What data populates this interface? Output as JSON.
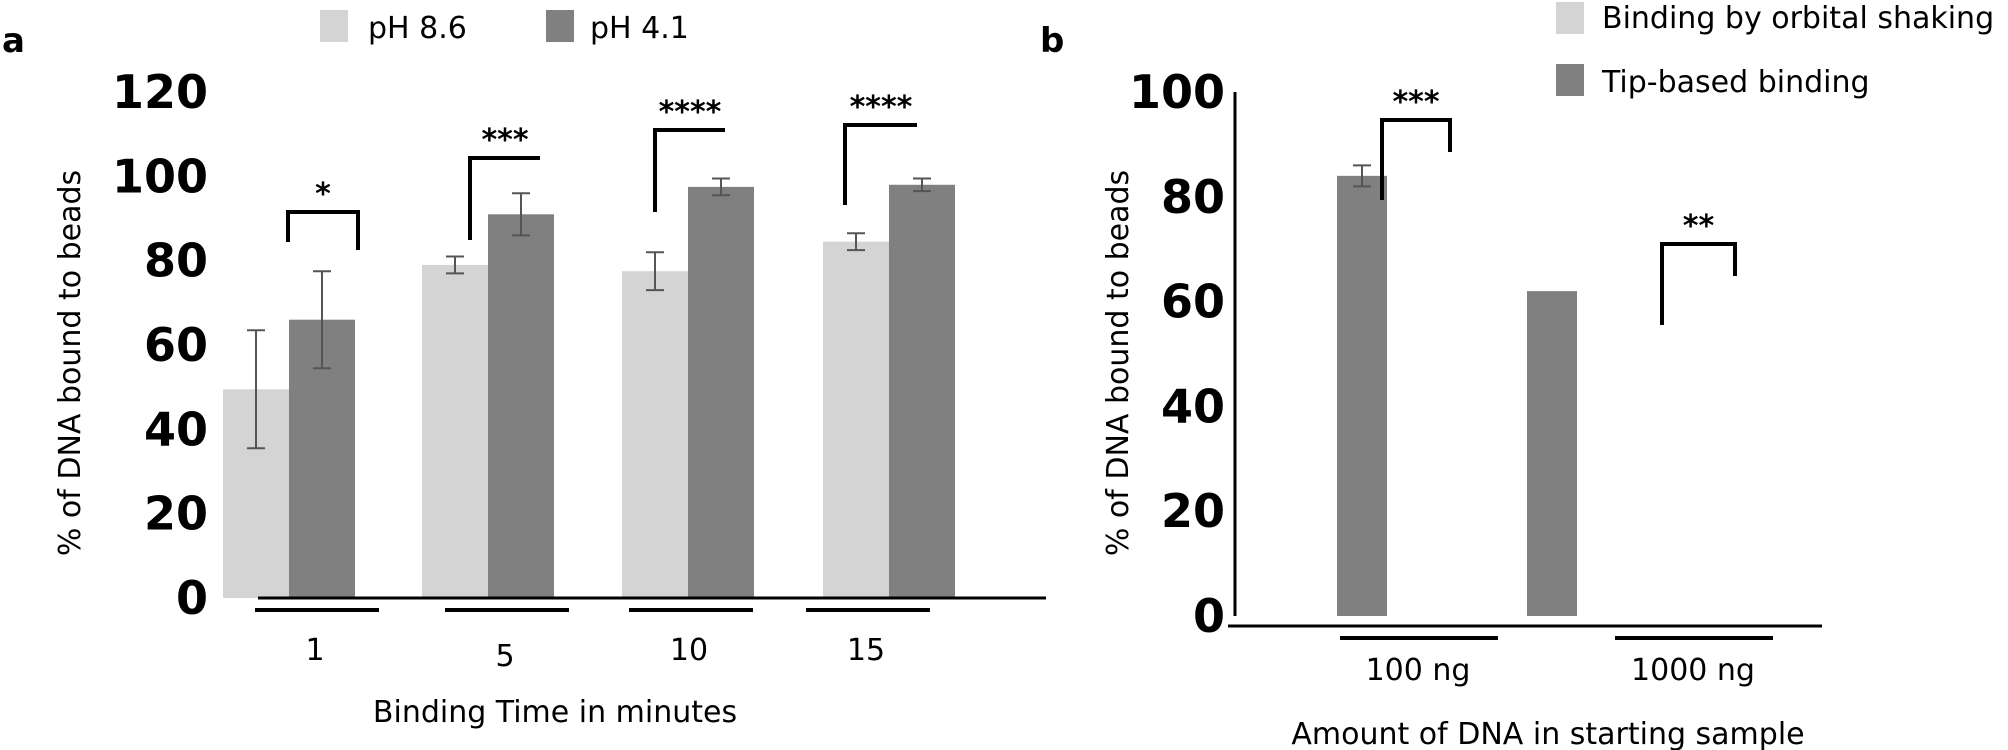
{
  "chart_data": [
    {
      "panel": "a",
      "type": "bar",
      "title": "",
      "xlabel": "Binding Time in minutes",
      "ylabel": "% of DNA bound to beads",
      "ylim": [
        0,
        120
      ],
      "yticks": [
        0,
        20,
        40,
        60,
        80,
        100,
        120
      ],
      "categories": [
        "1",
        "5",
        "10",
        "15"
      ],
      "legend_position": "top",
      "grid": false,
      "series": [
        {
          "name": "pH 8.6",
          "color": "#d4d4d4",
          "values": [
            49.5,
            79,
            77.5,
            84.5
          ],
          "errors": [
            14,
            2,
            4.5,
            2
          ]
        },
        {
          "name": "pH 4.1",
          "color": "#808080",
          "values": [
            66,
            91,
            97.5,
            98
          ],
          "errors": [
            11.5,
            5,
            2,
            1.5
          ]
        }
      ],
      "significance": [
        "*",
        "***",
        "****",
        "****"
      ]
    },
    {
      "panel": "b",
      "type": "bar",
      "title": "",
      "xlabel": "Amount of DNA in starting sample",
      "ylabel": "% of DNA bound to beads",
      "ylim": [
        0,
        100
      ],
      "yticks": [
        0,
        20,
        40,
        60,
        80,
        100
      ],
      "categories": [
        "100 ng",
        "1000 ng"
      ],
      "legend_position": "top-right",
      "grid": false,
      "series": [
        {
          "name": "Binding by orbital shaking",
          "color": "#d4d4d4",
          "values": [
            null,
            null
          ],
          "errors": [
            null,
            null
          ]
        },
        {
          "name": "Tip-based binding",
          "color": "#808080",
          "values": [
            84,
            62
          ],
          "errors": [
            2,
            null
          ]
        }
      ],
      "significance": [
        "***",
        "**"
      ]
    }
  ]
}
